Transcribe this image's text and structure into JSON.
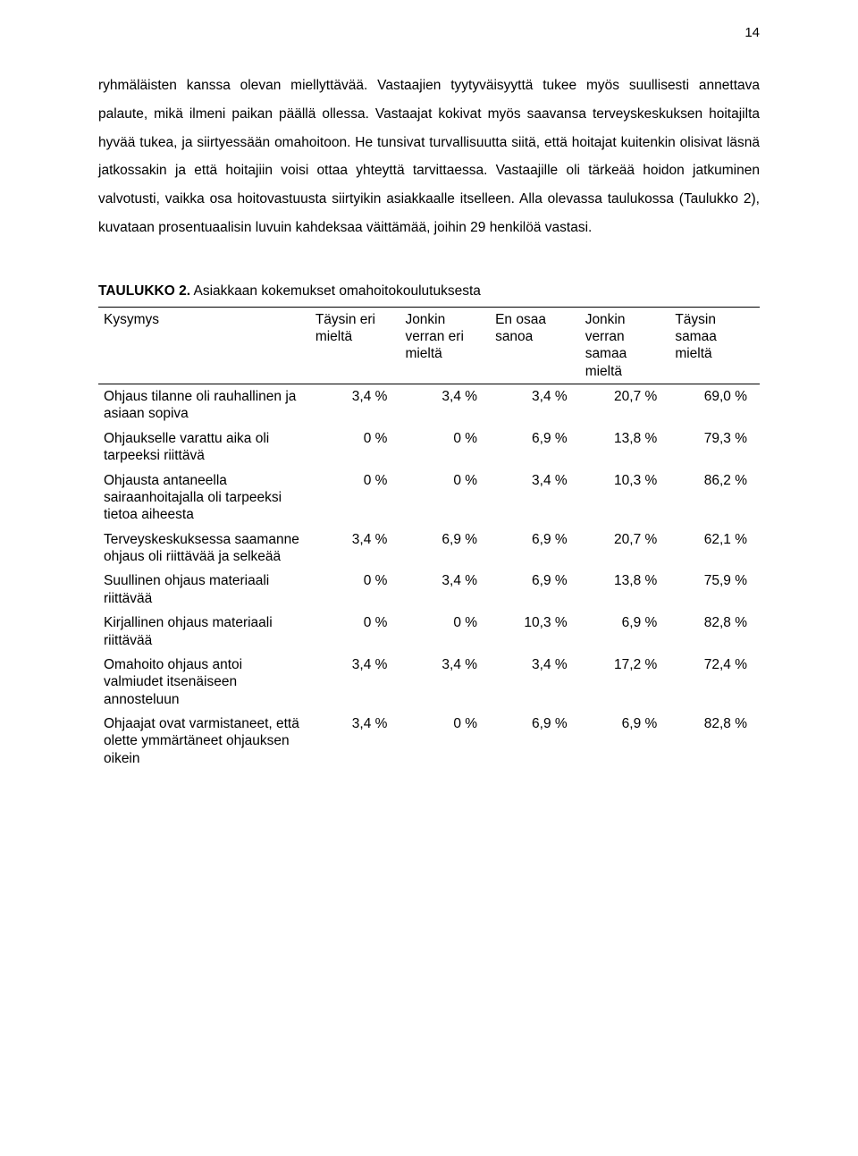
{
  "page_number": "14",
  "paragraph": "ryhmäläisten kanssa olevan miellyttävää. Vastaajien tyytyväisyyttä tukee myös suullisesti annettava palaute, mikä ilmeni paikan päällä ollessa. Vastaajat kokivat myös saavansa terveyskeskuksen hoitajilta hyvää tukea, ja siirtyessään omahoitoon. He tunsivat turvallisuutta siitä, että hoitajat kuitenkin olisivat läsnä jatkossakin ja että hoitajiin voisi ottaa yhteyttä tarvittaessa. Vastaajille oli tärkeää hoidon jatkuminen valvotusti, vaikka osa hoitovastuusta siirtyikin asiakkaalle itselleen. Alla olevassa taulukossa (Taulukko 2), kuvataan prosentuaalisin luvuin kahdeksaa väittämää, joihin 29 henkilöä vastasi.",
  "table": {
    "type": "table",
    "title_prefix": "TAULUKKO 2.",
    "title_rest": " Asiakkaan kokemukset omahoitokoulutuksesta",
    "header_question": "Kysymys",
    "columns": [
      "Täysin eri mieltä",
      "Jonkin verran eri mieltä",
      "En osaa sanoa",
      "Jonkin verran samaa mieltä",
      "Täysin samaa mieltä"
    ],
    "rows": [
      {
        "q": "Ohjaus tilanne oli rauhallinen ja asiaan sopiva",
        "v": [
          "3,4 %",
          "3,4 %",
          "3,4 %",
          "20,7 %",
          "69,0 %"
        ]
      },
      {
        "q": "Ohjaukselle varattu aika oli tarpeeksi riittävä",
        "v": [
          "0 %",
          "0 %",
          "6,9 %",
          "13,8 %",
          "79,3 %"
        ]
      },
      {
        "q": "Ohjausta antaneella sairaanhoitajalla oli tarpeeksi tietoa aiheesta",
        "v": [
          "0 %",
          "0 %",
          "3,4 %",
          "10,3 %",
          "86,2 %"
        ]
      },
      {
        "q": "Terveyskeskuksessa saamanne ohjaus oli riittävää ja selkeää",
        "v": [
          "3,4 %",
          "6,9 %",
          "6,9 %",
          "20,7 %",
          "62,1 %"
        ]
      },
      {
        "q": "Suullinen ohjaus materiaali riittävää",
        "v": [
          "0 %",
          "3,4 %",
          "6,9 %",
          "13,8 %",
          "75,9 %"
        ]
      },
      {
        "q": "Kirjallinen ohjaus materiaali riittävää",
        "v": [
          "0 %",
          "0 %",
          "10,3 %",
          "6,9 %",
          "82,8 %"
        ]
      },
      {
        "q": "Omahoito ohjaus antoi valmiudet itsenäiseen annosteluun",
        "v": [
          "3,4 %",
          "3,4 %",
          "3,4 %",
          "17,2 %",
          "72,4 %"
        ]
      },
      {
        "q": "Ohjaajat ovat varmistaneet, että olette ymmärtäneet ohjauksen oikein",
        "v": [
          "3,4 %",
          "0 %",
          "6,9 %",
          "6,9 %",
          "82,8 %"
        ]
      }
    ],
    "border_color": "#000000",
    "background_color": "#ffffff",
    "font_size_pt": 12,
    "alignment": {
      "question": "left",
      "values": "right"
    }
  }
}
